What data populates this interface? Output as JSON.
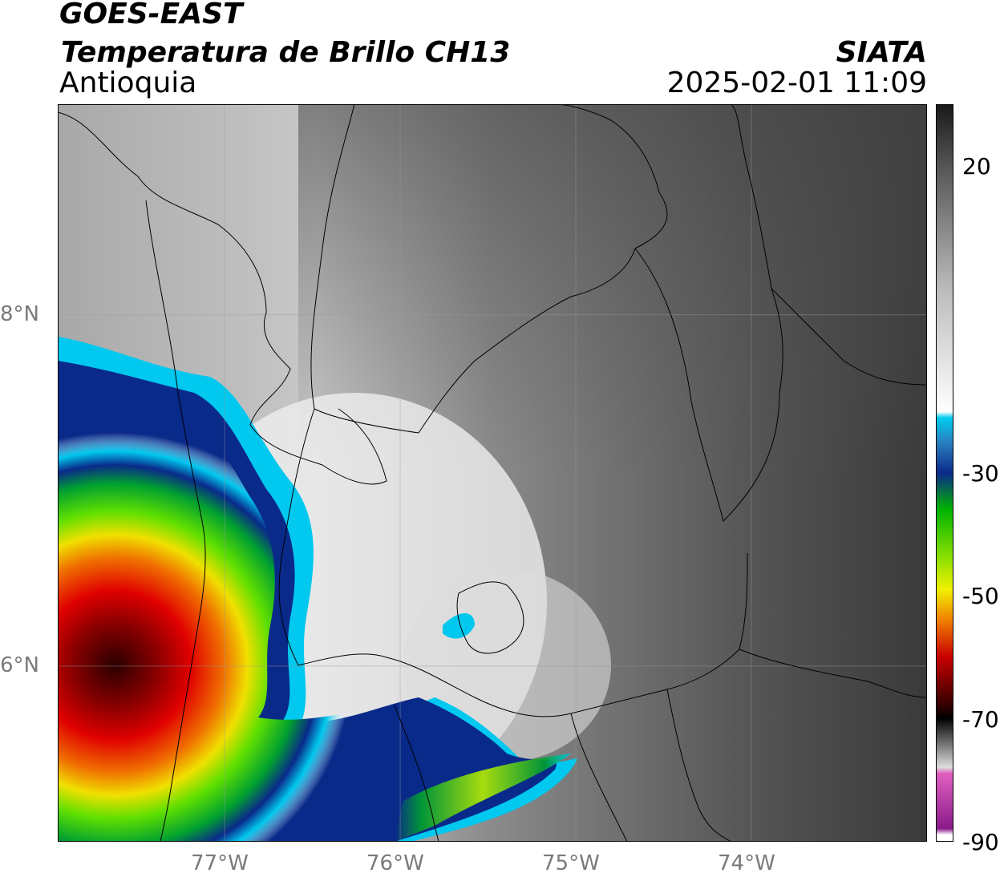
{
  "header": {
    "satellite": "GOES-EAST",
    "product": "Temperatura de Brillo CH13",
    "region": "Antioquia",
    "agency": "SIATA",
    "datetime": "2025-02-01 11:09"
  },
  "map": {
    "lat_labels": [
      "8°N",
      "6°N"
    ],
    "lon_labels": [
      "77°W",
      "76°W",
      "75°W",
      "74°W"
    ],
    "lat_values": [
      8,
      6
    ],
    "lon_values": [
      -77,
      -76,
      -75,
      -74
    ],
    "extent": {
      "lon_min": -77.95,
      "lon_max": -73.0,
      "lat_min": 5.0,
      "lat_max": 9.2
    }
  },
  "colorbar": {
    "unit_range": [
      -90,
      30
    ],
    "tick_labels": [
      "20",
      "-30",
      "-50",
      "-70",
      "-90"
    ],
    "tick_values": [
      20,
      -30,
      -50,
      -70,
      -90
    ],
    "colors": {
      "warm": "#1a1a1a",
      "white": "#ffffff",
      "cyan": "#00ccee",
      "blue": "#0a2a8a",
      "green": "#00b400",
      "yellow": "#f0f000",
      "orange": "#f08000",
      "red": "#c80000",
      "dark_red": "#300000",
      "pink": "#e060c0",
      "purple": "#8a1a8a"
    }
  }
}
